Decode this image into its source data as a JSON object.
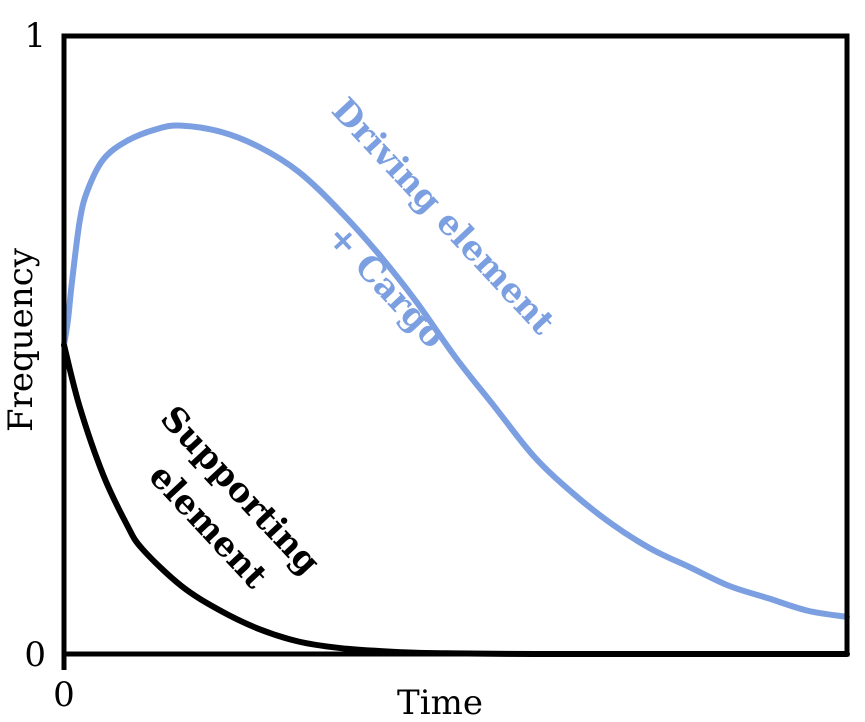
{
  "chart_data": {
    "type": "line",
    "title": "",
    "xlabel": "Time",
    "ylabel": "Frequency",
    "xlim": [
      0,
      1
    ],
    "ylim": [
      0,
      1
    ],
    "x_tick_labels": [
      "0"
    ],
    "y_tick_labels": [
      "0",
      "1"
    ],
    "grid": false,
    "legend": "none",
    "series": [
      {
        "name": "Driving element + Cargo",
        "label_lines": [
          "Driving element",
          "+ Cargo"
        ],
        "color": "#7b9fe0",
        "x": [
          0,
          0.005,
          0.01,
          0.02,
          0.03,
          0.05,
          0.08,
          0.12,
          0.15,
          0.2,
          0.25,
          0.3,
          0.35,
          0.4,
          0.45,
          0.5,
          0.55,
          0.6,
          0.65,
          0.7,
          0.75,
          0.8,
          0.85,
          0.9,
          0.95,
          1.0
        ],
        "values": [
          0.5,
          0.54,
          0.6,
          0.7,
          0.75,
          0.8,
          0.83,
          0.85,
          0.855,
          0.845,
          0.82,
          0.78,
          0.72,
          0.65,
          0.57,
          0.48,
          0.4,
          0.32,
          0.26,
          0.21,
          0.17,
          0.14,
          0.11,
          0.09,
          0.07,
          0.06
        ]
      },
      {
        "name": "Supporting element",
        "label_lines": [
          "Supporting",
          "element"
        ],
        "color": "#000000",
        "x": [
          0,
          0.02,
          0.05,
          0.08,
          0.1,
          0.15,
          0.2,
          0.25,
          0.3,
          0.35,
          0.4,
          0.45,
          0.5,
          0.6,
          0.7,
          0.8,
          0.9,
          1.0
        ],
        "values": [
          0.5,
          0.4,
          0.29,
          0.21,
          0.17,
          0.11,
          0.07,
          0.04,
          0.02,
          0.01,
          0.005,
          0.002,
          0.001,
          0.0,
          0.0,
          0.0,
          0.0,
          0.0
        ]
      }
    ]
  }
}
